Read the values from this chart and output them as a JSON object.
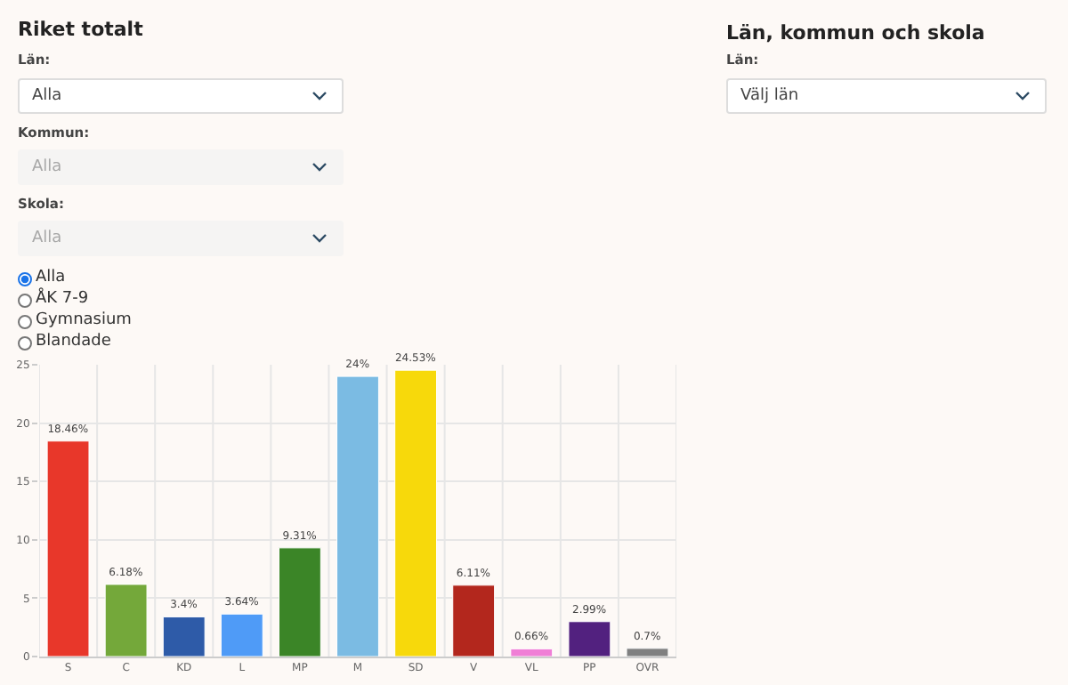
{
  "chart_data": {
    "type": "bar",
    "title": "Riket totalt",
    "annotations": [
      "Län:",
      "Alla",
      "Kommun:",
      "Alla",
      "Skola:",
      "Alla",
      "Alla",
      "ÅK 7-9",
      "Gymnasium",
      "Blandade",
      "Län, kommun och skola",
      "Län:",
      "Välj län"
    ],
    "categories": [
      "S",
      "C",
      "KD",
      "L",
      "MP",
      "M",
      "SD",
      "V",
      "VL",
      "PP",
      "OVR"
    ],
    "values": [
      18.46,
      6.18,
      3.4,
      3.64,
      9.31,
      24,
      24.53,
      6.11,
      0.66,
      2.99,
      0.7
    ],
    "value_labels": [
      "18.46%",
      "6.18%",
      "3.4%",
      "3.64%",
      "9.31%",
      "24%",
      "24.53%",
      "6.11%",
      "0.66%",
      "2.99%",
      "0.7%"
    ],
    "colors": [
      "#e8372a",
      "#74a83a",
      "#2e5ba8",
      "#4f9bf7",
      "#3b8527",
      "#7bbbe3",
      "#f7d90b",
      "#b3271d",
      "#f07fd6",
      "#52217f",
      "#808080"
    ],
    "ylim": [
      0,
      25
    ],
    "yticks": [
      0,
      5,
      10,
      15,
      20,
      25
    ],
    "grid": true
  }
}
